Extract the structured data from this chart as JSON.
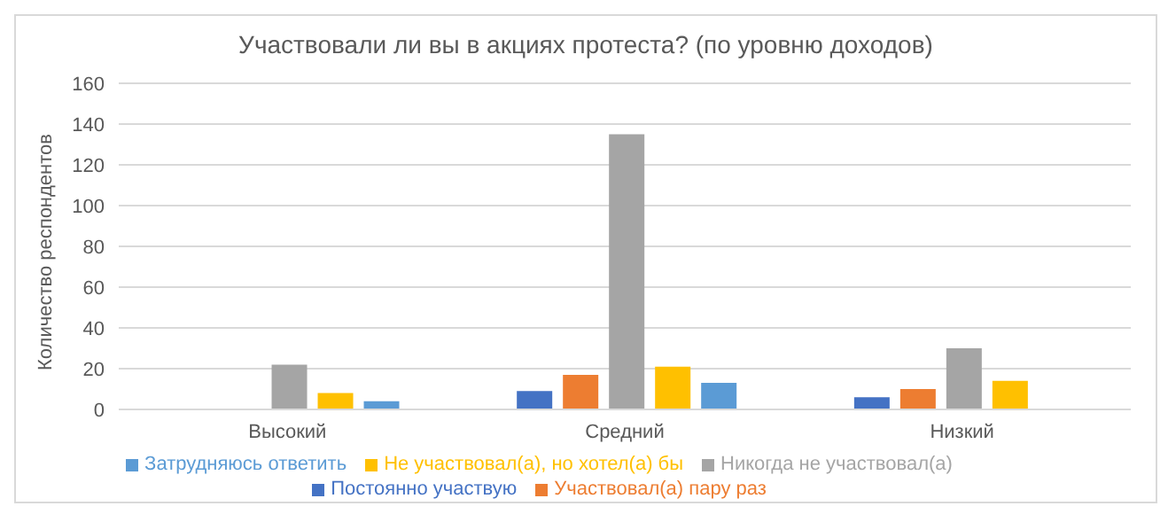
{
  "chart_data": {
    "type": "bar",
    "title": "Участвовали ли вы в акциях протеста? (по уровню доходов)",
    "ylabel": "Количество респондентов",
    "categories": [
      "Высокий",
      "Средний",
      "Низкий"
    ],
    "series": [
      {
        "name": "Постоянно участвую",
        "color": "#4472c4",
        "values": [
          0,
          9,
          6
        ]
      },
      {
        "name": "Участвовал(а) пару раз",
        "color": "#ed7d31",
        "values": [
          0,
          17,
          10
        ]
      },
      {
        "name": "Никогда не участвовал(а)",
        "color": "#a5a5a5",
        "values": [
          22,
          135,
          30
        ]
      },
      {
        "name": "Не участвовал(а), но хотел(а) бы",
        "color": "#ffc000",
        "values": [
          8,
          21,
          14
        ]
      },
      {
        "name": "Затрудняюсь ответить",
        "color": "#5b9bd5",
        "values": [
          4,
          13,
          0
        ]
      }
    ],
    "ylim": [
      0,
      160
    ],
    "yticks": [
      0,
      20,
      40,
      60,
      80,
      100,
      120,
      140,
      160
    ],
    "grid": "y",
    "legend": "bottom"
  }
}
